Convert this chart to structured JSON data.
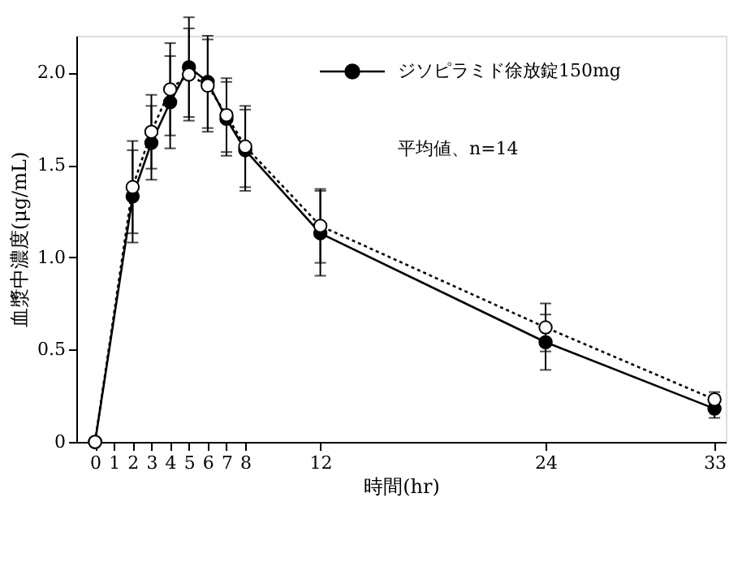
{
  "chart_data": {
    "type": "line",
    "xlabel": "時間(hr)",
    "ylabel": "血漿中濃度(μg/mL)",
    "xlim": [
      -1,
      33.6
    ],
    "ylim": [
      0,
      2.2
    ],
    "xticks": [
      0,
      1,
      2,
      3,
      4,
      5,
      6,
      7,
      8,
      12,
      24,
      33
    ],
    "yticks": [
      0,
      0.5,
      {
        "value": 1,
        "label": "1.0"
      },
      1.5,
      {
        "value": 2,
        "label": "2.0"
      }
    ],
    "grid": false,
    "legend": "top right",
    "marker": "circle",
    "annotations": [
      "平均値、n=14"
    ],
    "series": [
      {
        "name": "ジソピラミド徐放錠150mg",
        "color": "#000000",
        "line_style": "solid",
        "x": [
          0,
          2,
          3,
          4,
          5,
          6,
          7,
          8,
          12,
          24,
          33
        ],
        "values": [
          0,
          1.33,
          1.62,
          1.84,
          2.03,
          1.95,
          1.75,
          1.58,
          1.13,
          0.54,
          0.18
        ],
        "errors": [
          null,
          0.25,
          0.2,
          0.25,
          0.27,
          0.25,
          0.2,
          0.22,
          0.23,
          0.15,
          0.05
        ]
      },
      {
        "color": "#000000",
        "line_style": "dotted",
        "x": [
          0,
          2,
          3,
          4,
          5,
          6,
          7,
          8,
          12,
          24,
          33
        ],
        "values": [
          0,
          1.38,
          1.68,
          1.91,
          1.99,
          1.93,
          1.77,
          1.6,
          1.17,
          0.62,
          0.23
        ],
        "errors": [
          null,
          0.25,
          0.2,
          0.25,
          0.25,
          0.25,
          0.2,
          0.22,
          0.2,
          0.13,
          0.04
        ]
      }
    ]
  }
}
